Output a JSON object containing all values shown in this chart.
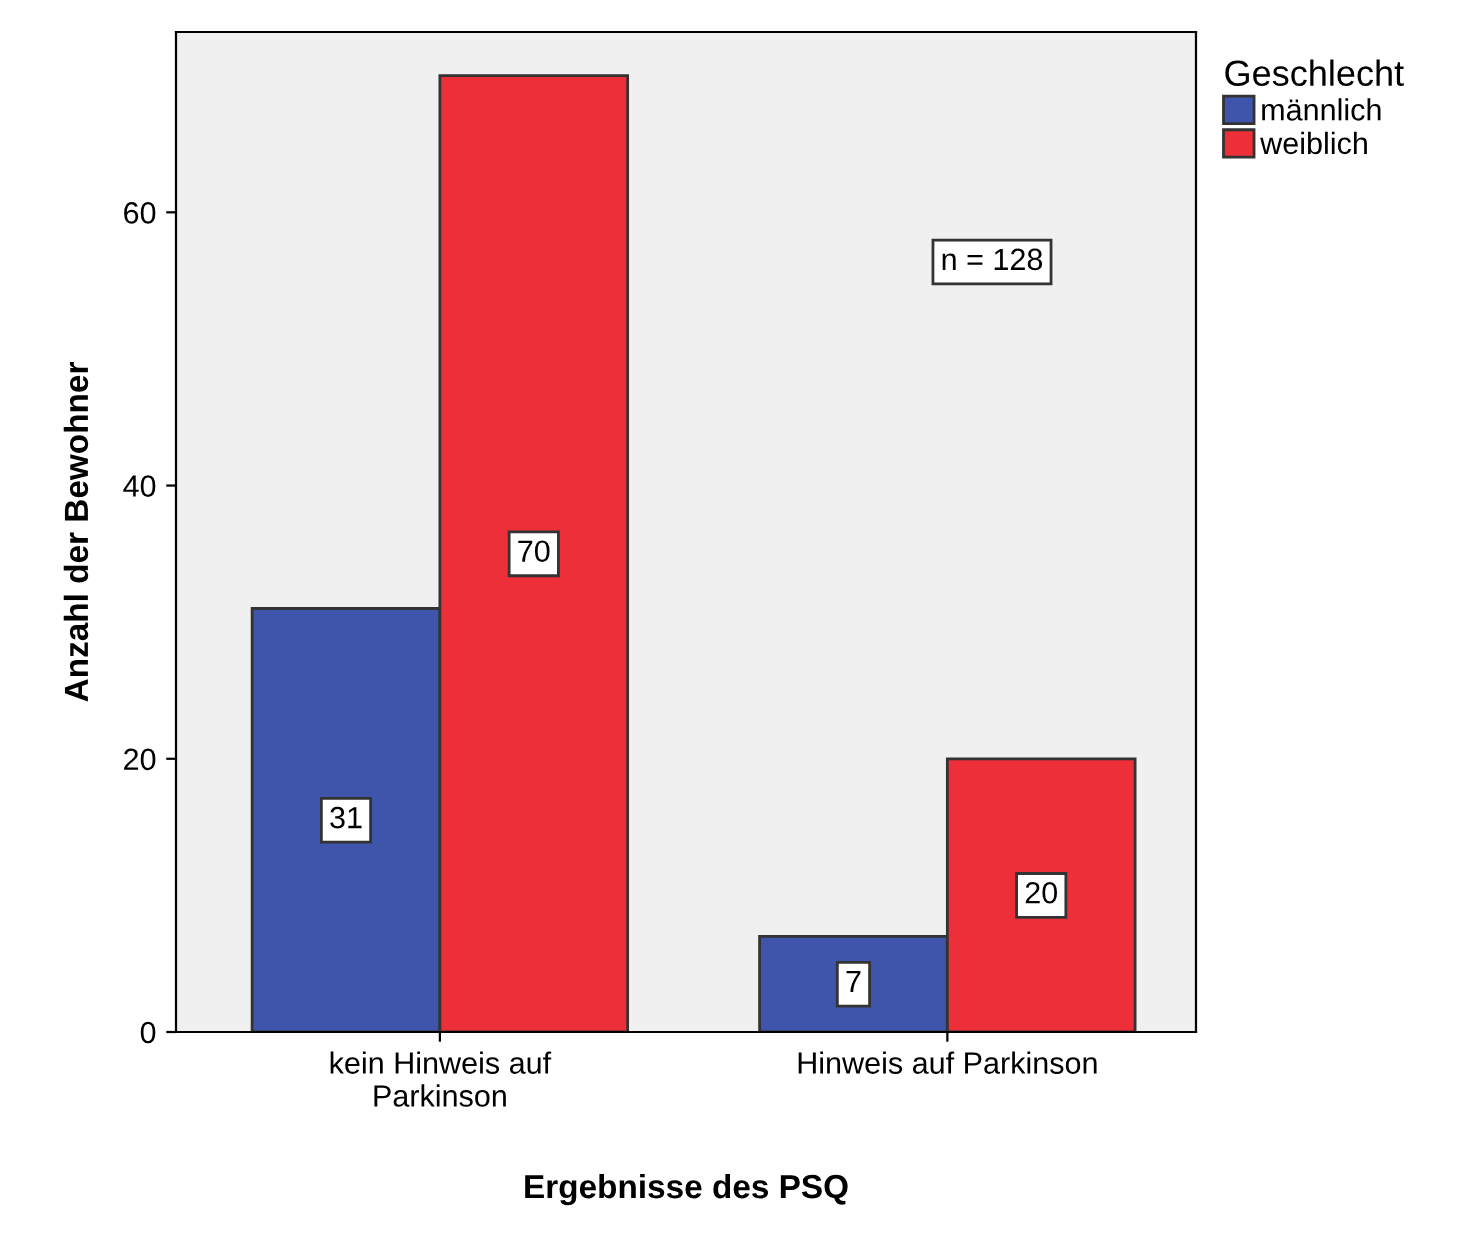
{
  "chart_data": {
    "type": "bar",
    "xlabel": "Ergebnisse des PSQ",
    "ylabel": "Anzahl der Bewohner",
    "legend_title": "Geschlecht",
    "categories": [
      "kein Hinweis auf\nParkinson",
      "Hinweis auf Parkinson"
    ],
    "series": [
      {
        "name": "männlich",
        "color": "#3e55ab",
        "values": [
          31,
          7
        ]
      },
      {
        "name": "weiblich",
        "color": "#ec2f38",
        "values": [
          70,
          20
        ]
      }
    ],
    "ylim": [
      0,
      73.2
    ],
    "yticks": [
      0,
      20,
      40,
      60
    ],
    "data_labels": true,
    "grid": false,
    "legend": "top right",
    "annotations": [
      "n = 128"
    ]
  }
}
